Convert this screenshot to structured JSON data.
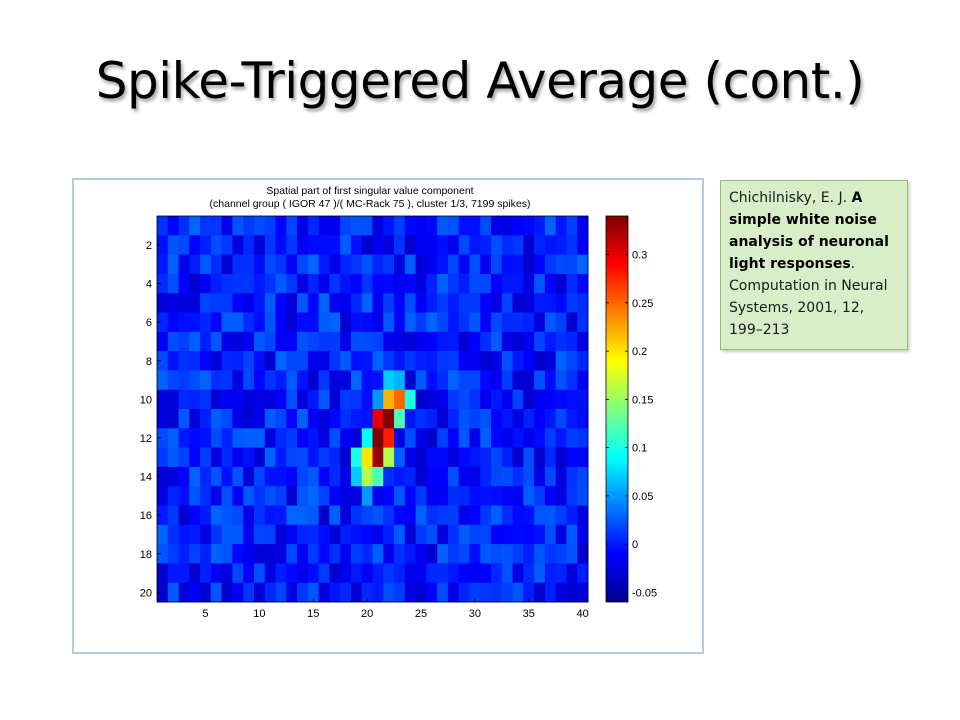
{
  "slide": {
    "title": "Spike-Triggered Average (cont.)"
  },
  "citation": {
    "author": "Chichilnisky, E. J. ",
    "article_title": "A simple white noise analysis of neuronal light responses",
    "period": ".",
    "journal": " Computation in Neural Systems, 2001, 12, 199–213"
  },
  "chart_data": {
    "type": "heatmap",
    "title": "Spatial part of first singular value component",
    "subtitle": "(channel group ( IGOR 47 )/( MC-Rack 75 ), cluster 1/3, 7199 spikes)",
    "xlabel": "",
    "ylabel": "",
    "x_ticks": [
      5,
      10,
      15,
      20,
      25,
      30,
      35,
      40
    ],
    "y_ticks": [
      2,
      4,
      6,
      8,
      10,
      12,
      14,
      16,
      18,
      20
    ],
    "xlim": [
      0.5,
      40.5
    ],
    "ylim": [
      0.5,
      20.5
    ],
    "grid": false,
    "colormap": "jet",
    "color_range": [
      -0.06,
      0.34
    ],
    "colorbar_ticks": [
      -0.05,
      0,
      0.05,
      0.1,
      0.15,
      0.2,
      0.25,
      0.3
    ],
    "colorbar_tick_labels": [
      "-0.05",
      "0",
      "0.05",
      "0.1",
      "0.15",
      "0.2",
      "0.25",
      "0.3"
    ],
    "background_level": "near 0, noise about ±0.03",
    "hotspots": [
      {
        "x": 21,
        "y": 10,
        "value": 0.05
      },
      {
        "x": 22,
        "y": 9,
        "value": 0.07
      },
      {
        "x": 23,
        "y": 9,
        "value": 0.06
      },
      {
        "x": 22,
        "y": 10,
        "value": 0.22
      },
      {
        "x": 23,
        "y": 10,
        "value": 0.25
      },
      {
        "x": 24,
        "y": 10,
        "value": 0.1
      },
      {
        "x": 21,
        "y": 11,
        "value": 0.3
      },
      {
        "x": 22,
        "y": 11,
        "value": 0.34
      },
      {
        "x": 23,
        "y": 11,
        "value": 0.12
      },
      {
        "x": 20,
        "y": 12,
        "value": 0.09
      },
      {
        "x": 21,
        "y": 12,
        "value": 0.34
      },
      {
        "x": 22,
        "y": 12,
        "value": 0.28
      },
      {
        "x": 19,
        "y": 13,
        "value": 0.1
      },
      {
        "x": 20,
        "y": 13,
        "value": 0.2
      },
      {
        "x": 21,
        "y": 13,
        "value": 0.33
      },
      {
        "x": 22,
        "y": 13,
        "value": 0.16
      },
      {
        "x": 19,
        "y": 14,
        "value": 0.07
      },
      {
        "x": 20,
        "y": 14,
        "value": 0.16
      },
      {
        "x": 21,
        "y": 14,
        "value": 0.12
      },
      {
        "x": 20,
        "y": 15,
        "value": 0.05
      }
    ]
  }
}
